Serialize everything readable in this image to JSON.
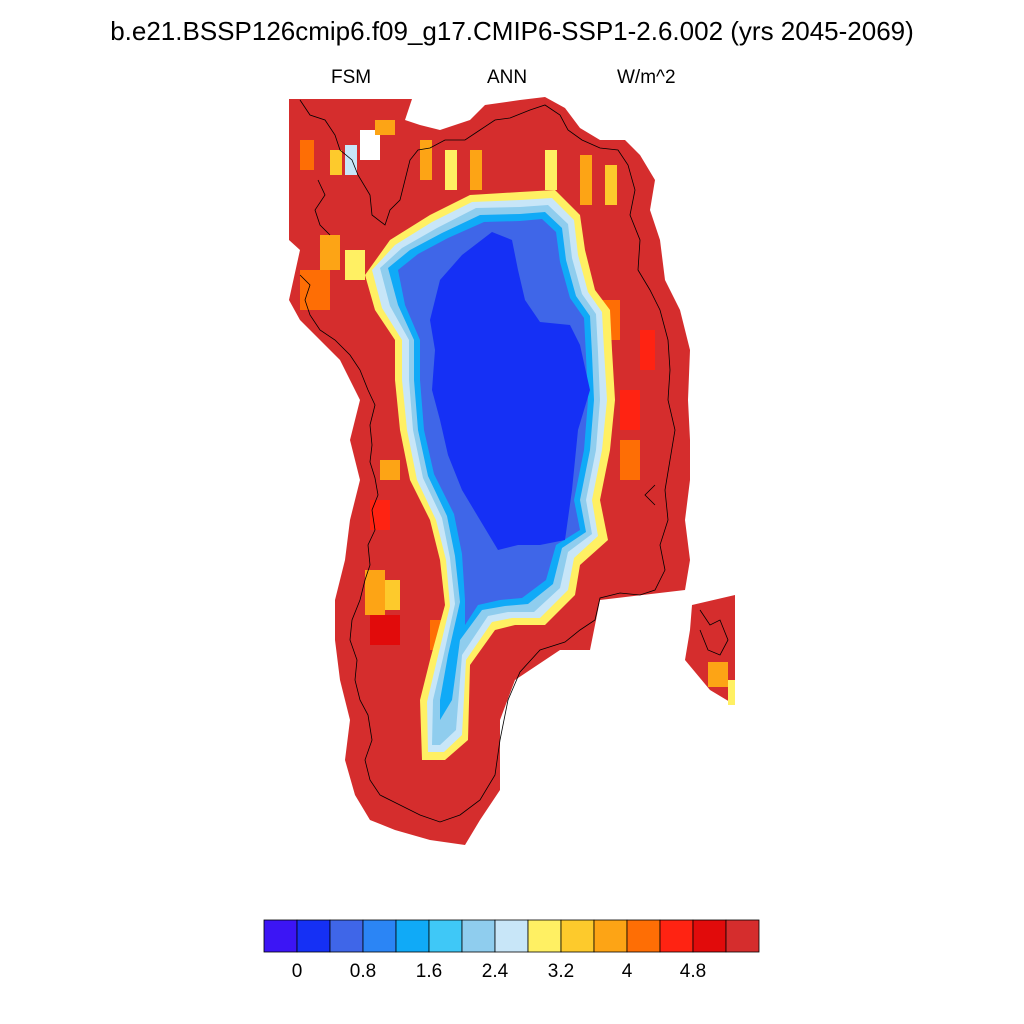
{
  "title": "b.e21.BSSP126cmip6.f09_g17.CMIP6-SSP1-2.6.002 (yrs 2045-2069)",
  "variable": "FSM",
  "season": "ANN",
  "units": "W/m^2",
  "colorbar": {
    "colors": [
      "#3c15f5",
      "#1530f5",
      "#3f66e8",
      "#2b85f5",
      "#10aaf7",
      "#3fc8f7",
      "#8fcdee",
      "#c8e6f8",
      "#fff063",
      "#fdca2c",
      "#fda415",
      "#fe6e05",
      "#ff2312",
      "#e10b0b",
      "#d52d2d"
    ],
    "labels": [
      "0",
      "0.8",
      "1.6",
      "2.4",
      "3.2",
      "4",
      "4.8"
    ]
  },
  "palette": {
    "coast": "#000000",
    "background": "#ffffff"
  }
}
